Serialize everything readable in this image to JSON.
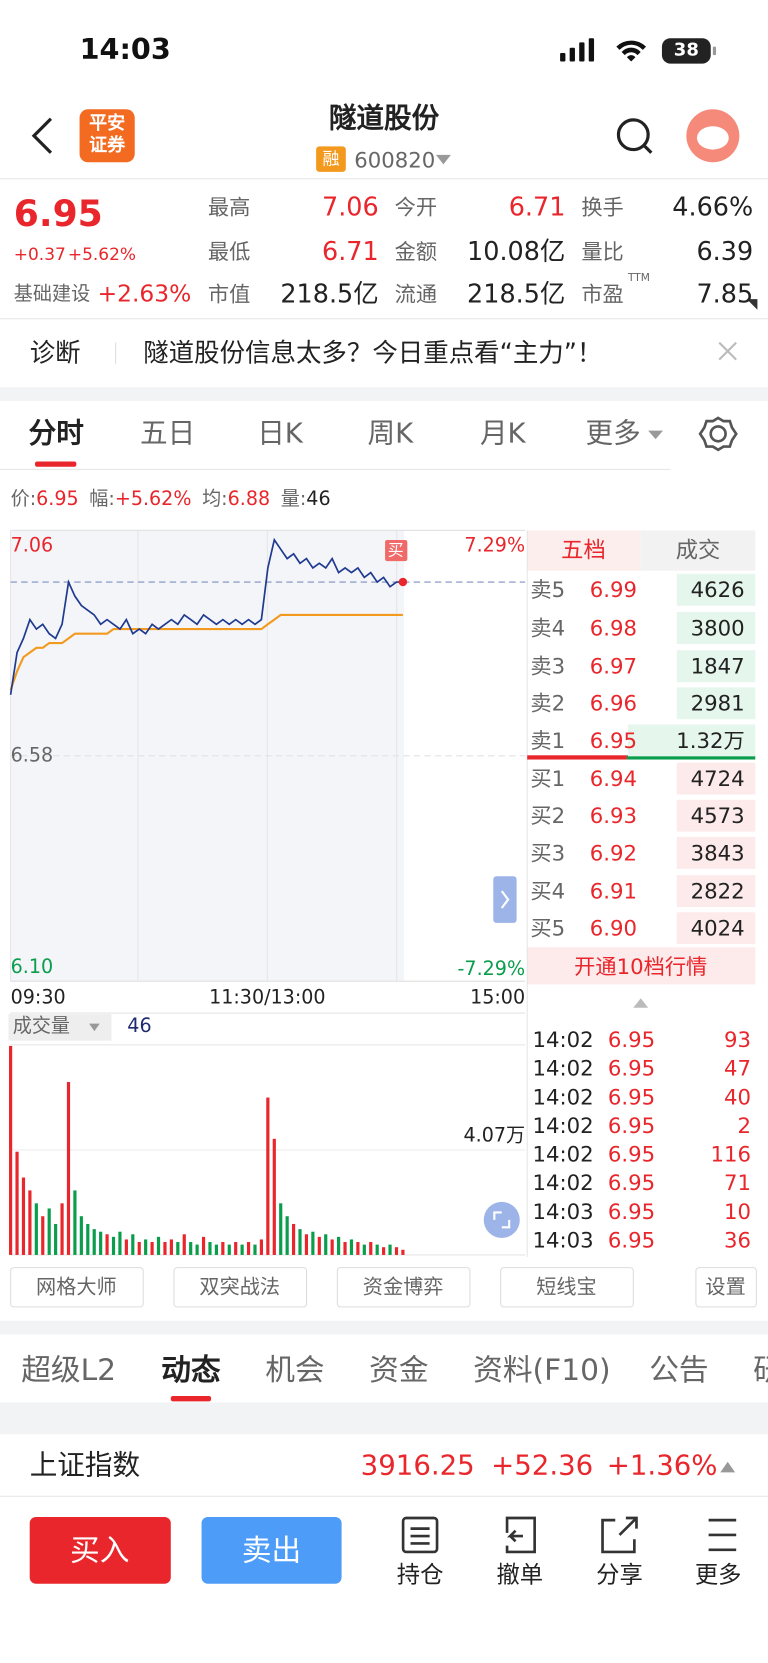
{
  "status": {
    "time": "14:03",
    "battery": "38"
  },
  "header": {
    "logo": [
      "平安",
      "证券"
    ],
    "title": "隧道股份",
    "tag": "融",
    "code": "600820"
  },
  "quote": {
    "price": "6.95",
    "change": "+0.37",
    "change_pct": "+5.62%",
    "sector": "基础建设",
    "sector_pct": "+2.63%",
    "stats": [
      {
        "label": "最高",
        "value": "7.06",
        "rise": true
      },
      {
        "label": "今开",
        "value": "6.71",
        "rise": true
      },
      {
        "label": "换手",
        "value": "4.66%",
        "rise": false
      },
      {
        "label": "最低",
        "value": "6.71",
        "rise": true
      },
      {
        "label": "金额",
        "value": "10.08亿",
        "rise": false
      },
      {
        "label": "量比",
        "value": "6.39",
        "rise": false
      },
      {
        "label": "市值",
        "value": "218.5亿",
        "rise": false
      },
      {
        "label": "流通",
        "value": "218.5亿",
        "rise": false
      },
      {
        "label": "市盈",
        "sup": "TTM",
        "value": "7.85",
        "rise": false
      }
    ]
  },
  "banner": {
    "tag": "诊断",
    "text": "隧道股份信息太多？今日重点看“主力”！"
  },
  "tabs": [
    "分时",
    "五日",
    "日K",
    "周K",
    "月K",
    "更多"
  ],
  "info": [
    {
      "label": "价:",
      "value": "6.95",
      "rise": true
    },
    {
      "label": "幅:",
      "value": "+5.62%",
      "rise": true
    },
    {
      "label": "均:",
      "value": "6.88",
      "rise": true
    },
    {
      "label": "量:",
      "value": "46",
      "rise": false
    }
  ],
  "chart": {
    "type": "line",
    "xlim": [
      0,
      240
    ],
    "ylim": [
      6.1,
      7.06
    ],
    "yticks": [
      7.06,
      6.58,
      {
        "value": 6.1,
        "label": "6.10"
      }
    ],
    "pct_labels": [
      "7.29%",
      "-7.29%"
    ],
    "xlabels": [
      "09:30",
      "11:30/13:00",
      "15:00"
    ],
    "price_color": "#1f3a8f",
    "avg_color": "#f39a1e",
    "marker": "买",
    "x": [
      0,
      3,
      6,
      9,
      12,
      15,
      18,
      21,
      24,
      27,
      30,
      33,
      36,
      39,
      42,
      45,
      48,
      51,
      54,
      57,
      60,
      63,
      66,
      69,
      72,
      75,
      78,
      81,
      84,
      87,
      90,
      93,
      96,
      99,
      102,
      105,
      108,
      111,
      114,
      117,
      120,
      123,
      126,
      129,
      132,
      135,
      138,
      141,
      144,
      147,
      150,
      153,
      156,
      159,
      162,
      165,
      168,
      171,
      174,
      177,
      180,
      183
    ],
    "price": [
      6.71,
      6.8,
      6.83,
      6.87,
      6.85,
      6.86,
      6.84,
      6.83,
      6.86,
      6.95,
      6.92,
      6.9,
      6.89,
      6.88,
      6.86,
      6.87,
      6.86,
      6.85,
      6.87,
      6.84,
      6.85,
      6.84,
      6.86,
      6.85,
      6.86,
      6.87,
      6.86,
      6.88,
      6.87,
      6.86,
      6.88,
      6.87,
      6.86,
      6.87,
      6.86,
      6.87,
      6.86,
      6.87,
      6.86,
      6.87,
      6.98,
      7.04,
      7.02,
      7.0,
      7.01,
      6.99,
      7.0,
      6.98,
      6.99,
      6.98,
      7.0,
      6.97,
      6.98,
      6.97,
      6.98,
      6.96,
      6.97,
      6.95,
      6.96,
      6.94,
      6.95,
      6.95
    ],
    "avg": [
      6.72,
      6.76,
      6.79,
      6.8,
      6.81,
      6.81,
      6.82,
      6.82,
      6.82,
      6.83,
      6.84,
      6.84,
      6.84,
      6.84,
      6.84,
      6.84,
      6.85,
      6.85,
      6.85,
      6.85,
      6.85,
      6.85,
      6.85,
      6.85,
      6.85,
      6.85,
      6.85,
      6.85,
      6.85,
      6.85,
      6.85,
      6.85,
      6.85,
      6.85,
      6.85,
      6.85,
      6.85,
      6.85,
      6.85,
      6.85,
      6.86,
      6.87,
      6.88,
      6.88,
      6.88,
      6.88,
      6.88,
      6.88,
      6.88,
      6.88,
      6.88,
      6.88,
      6.88,
      6.88,
      6.88,
      6.88,
      6.88,
      6.88,
      6.88,
      6.88,
      6.88,
      6.88
    ],
    "volume": {
      "label": "成交量",
      "current": "46",
      "vlim": [
        0,
        81400
      ],
      "vticks": [
        {
          "value": 40700,
          "label": "4.07万"
        }
      ],
      "values": [
        81000,
        40000,
        30000,
        25000,
        20000,
        15000,
        18000,
        12000,
        20000,
        67000,
        25000,
        15000,
        12000,
        10000,
        9000,
        8000,
        7000,
        9000,
        6000,
        8000,
        5000,
        6000,
        5000,
        7000,
        5000,
        6000,
        5000,
        8000,
        5000,
        4000,
        7000,
        5000,
        4000,
        5000,
        4000,
        5000,
        4000,
        5000,
        4000,
        6000,
        61000,
        45000,
        20000,
        15000,
        12000,
        10000,
        8000,
        9000,
        7000,
        8000,
        6000,
        7000,
        5000,
        6000,
        5000,
        4000,
        5000,
        4000,
        3000,
        4000,
        3000,
        2000
      ]
    }
  },
  "orderbook": {
    "tabs": [
      "五档",
      "成交"
    ],
    "asks": [
      {
        "label": "卖5",
        "price": "6.99",
        "vol": "4626"
      },
      {
        "label": "卖4",
        "price": "6.98",
        "vol": "3800"
      },
      {
        "label": "卖3",
        "price": "6.97",
        "vol": "1847"
      },
      {
        "label": "卖2",
        "price": "6.96",
        "vol": "2981"
      },
      {
        "label": "卖1",
        "price": "6.95",
        "vol": "1.32万"
      }
    ],
    "bids": [
      {
        "label": "买1",
        "price": "6.94",
        "vol": "4724"
      },
      {
        "label": "买2",
        "price": "6.93",
        "vol": "4573"
      },
      {
        "label": "买3",
        "price": "6.92",
        "vol": "3843"
      },
      {
        "label": "买4",
        "price": "6.91",
        "vol": "2822"
      },
      {
        "label": "买5",
        "price": "6.90",
        "vol": "4024"
      }
    ],
    "upgrade": "开通10档行情",
    "trades": [
      {
        "time": "14:02",
        "price": "6.95",
        "vol": "93"
      },
      {
        "time": "14:02",
        "price": "6.95",
        "vol": "47"
      },
      {
        "time": "14:02",
        "price": "6.95",
        "vol": "40"
      },
      {
        "time": "14:02",
        "price": "6.95",
        "vol": "2"
      },
      {
        "time": "14:02",
        "price": "6.95",
        "vol": "116"
      },
      {
        "time": "14:02",
        "price": "6.95",
        "vol": "71"
      },
      {
        "time": "14:03",
        "price": "6.95",
        "vol": "10"
      },
      {
        "time": "14:03",
        "price": "6.95",
        "vol": "36"
      }
    ]
  },
  "tools": [
    "网格大师",
    "双突战法",
    "资金博弈",
    "短线宝",
    "设置"
  ],
  "sections": [
    "超级L2",
    "动态",
    "机会",
    "资金",
    "资料(F10)",
    "公告",
    "研"
  ],
  "index": {
    "name": "上证指数",
    "value": "3916.25",
    "change": "+52.36",
    "pct": "+1.36%"
  },
  "actions": {
    "buy": "买入",
    "sell": "卖出",
    "items": [
      "持仓",
      "撤单",
      "分享",
      "更多"
    ]
  }
}
